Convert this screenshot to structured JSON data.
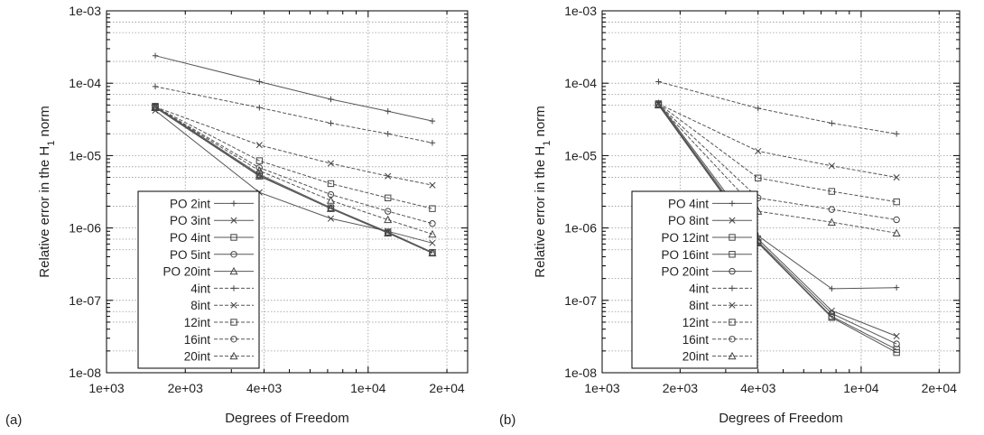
{
  "chart_data": [
    {
      "type": "line",
      "panel_label": "(a)",
      "xlabel": "Degrees of Freedom",
      "ylabel": "Relative error in the H",
      "ylabel_sub": "1",
      "ylabel_tail": " norm",
      "xscale": "log",
      "yscale": "log",
      "xlim": [
        1000,
        24000
      ],
      "ylim": [
        1e-08,
        0.001
      ],
      "xticks": [
        {
          "v": 1000,
          "label": "1e+03"
        },
        {
          "v": 2000,
          "label": "2e+03"
        },
        {
          "v": 4000,
          "label": "4e+03"
        },
        {
          "v": 10000,
          "label": "1e+04"
        },
        {
          "v": 20000,
          "label": "2e+04"
        }
      ],
      "yticks": [
        {
          "v": 1e-08,
          "label": "1e-08"
        },
        {
          "v": 1e-07,
          "label": "1e-07"
        },
        {
          "v": 1e-06,
          "label": "1e-06"
        },
        {
          "v": 1e-05,
          "label": "1e-05"
        },
        {
          "v": 0.0001,
          "label": "1e-04"
        },
        {
          "v": 0.001,
          "label": "1e-03"
        }
      ],
      "grid": true,
      "legend_position": "bottom-left",
      "series": [
        {
          "name": "PO 2int",
          "marker": "plus",
          "dash": "solid",
          "x": [
            1536,
            3840,
            7200,
            11900,
            17600
          ],
          "y": [
            0.00024,
            0.000105,
            6e-05,
            4.1e-05,
            3e-05
          ]
        },
        {
          "name": "PO 3int",
          "marker": "x",
          "dash": "solid",
          "x": [
            1536,
            3840,
            7200,
            11900,
            17600
          ],
          "y": [
            4.2e-05,
            3.1e-06,
            1.35e-06,
            9e-07,
            6.2e-07
          ]
        },
        {
          "name": "PO 4int",
          "marker": "square",
          "dash": "solid",
          "x": [
            1536,
            3840,
            7200,
            11900,
            17600
          ],
          "y": [
            4.8e-05,
            5.5e-06,
            1.9e-06,
            8.8e-07,
            4.6e-07
          ]
        },
        {
          "name": "PO 5int",
          "marker": "circle",
          "dash": "solid",
          "x": [
            1536,
            3840,
            7200,
            11900,
            17600
          ],
          "y": [
            4.7e-05,
            5.3e-06,
            1.85e-06,
            8.6e-07,
            4.5e-07
          ]
        },
        {
          "name": "PO 20int",
          "marker": "triangle",
          "dash": "solid",
          "x": [
            1536,
            3840,
            7200,
            11900,
            17600
          ],
          "y": [
            4.6e-05,
            5.2e-06,
            1.85e-06,
            8.5e-07,
            4.5e-07
          ]
        },
        {
          "name": "4int",
          "marker": "plus",
          "dash": "dashed",
          "x": [
            1536,
            3840,
            7200,
            11900,
            17600
          ],
          "y": [
            9e-05,
            4.6e-05,
            2.8e-05,
            2e-05,
            1.5e-05
          ]
        },
        {
          "name": "8int",
          "marker": "x",
          "dash": "dashed",
          "x": [
            1536,
            3840,
            7200,
            11900,
            17600
          ],
          "y": [
            4.7e-05,
            1.4e-05,
            7.8e-06,
            5.2e-06,
            3.9e-06
          ]
        },
        {
          "name": "12int",
          "marker": "square",
          "dash": "dashed",
          "x": [
            1536,
            3840,
            7200,
            11900,
            17600
          ],
          "y": [
            4.7e-05,
            8.5e-06,
            4.1e-06,
            2.6e-06,
            1.85e-06
          ]
        },
        {
          "name": "16int",
          "marker": "circle",
          "dash": "dashed",
          "x": [
            1536,
            3840,
            7200,
            11900,
            17600
          ],
          "y": [
            4.7e-05,
            6.8e-06,
            2.9e-06,
            1.7e-06,
            1.15e-06
          ]
        },
        {
          "name": "20int",
          "marker": "triangle",
          "dash": "dashed",
          "x": [
            1536,
            3840,
            7200,
            11900,
            17600
          ],
          "y": [
            4.7e-05,
            6.2e-06,
            2.4e-06,
            1.3e-06,
            8.2e-07
          ]
        }
      ]
    },
    {
      "type": "line",
      "panel_label": "(b)",
      "xlabel": "Degrees of Freedom",
      "ylabel": "Relative error in the H",
      "ylabel_sub": "1",
      "ylabel_tail": " norm",
      "xscale": "log",
      "yscale": "log",
      "xlim": [
        1000,
        24000
      ],
      "ylim": [
        1e-08,
        0.001
      ],
      "xticks": [
        {
          "v": 1000,
          "label": "1e+03"
        },
        {
          "v": 2000,
          "label": "2e+03"
        },
        {
          "v": 4000,
          "label": "4e+03"
        },
        {
          "v": 10000,
          "label": "1e+04"
        },
        {
          "v": 20000,
          "label": "2e+04"
        }
      ],
      "yticks": [
        {
          "v": 1e-08,
          "label": "1e-08"
        },
        {
          "v": 1e-07,
          "label": "1e-07"
        },
        {
          "v": 1e-06,
          "label": "1e-06"
        },
        {
          "v": 1e-05,
          "label": "1e-05"
        },
        {
          "v": 0.0001,
          "label": "1e-04"
        },
        {
          "v": 0.001,
          "label": "1e-03"
        }
      ],
      "grid": true,
      "legend_position": "bottom-left",
      "series": [
        {
          "name": "PO 4int",
          "marker": "plus",
          "dash": "solid",
          "x": [
            1650,
            4000,
            7700,
            13700
          ],
          "y": [
            5.4e-05,
            7.8e-07,
            1.45e-07,
            1.5e-07
          ]
        },
        {
          "name": "PO 8int",
          "marker": "x",
          "dash": "solid",
          "x": [
            1650,
            4000,
            7700,
            13700
          ],
          "y": [
            5.2e-05,
            7e-07,
            7.2e-08,
            3.2e-08
          ]
        },
        {
          "name": "PO 12int",
          "marker": "square",
          "dash": "solid",
          "x": [
            1650,
            4000,
            7700,
            13700
          ],
          "y": [
            5e-05,
            6.2e-07,
            5.8e-08,
            1.9e-08
          ]
        },
        {
          "name": "PO 16int",
          "marker": "square",
          "dash": "solid",
          "x": [
            1650,
            4000,
            7700,
            13700
          ],
          "y": [
            5e-05,
            6.3e-07,
            6e-08,
            2.1e-08
          ]
        },
        {
          "name": "PO 20int",
          "marker": "circle",
          "dash": "solid",
          "x": [
            1650,
            4000,
            7700,
            13700
          ],
          "y": [
            5.1e-05,
            6.5e-07,
            6.6e-08,
            2.5e-08
          ]
        },
        {
          "name": "4int",
          "marker": "plus",
          "dash": "dashed",
          "x": [
            1650,
            4000,
            7700,
            13700
          ],
          "y": [
            0.000105,
            4.5e-05,
            2.8e-05,
            2e-05
          ]
        },
        {
          "name": "8int",
          "marker": "x",
          "dash": "dashed",
          "x": [
            1650,
            4000,
            7700,
            13700
          ],
          "y": [
            5.2e-05,
            1.15e-05,
            7.2e-06,
            5e-06
          ]
        },
        {
          "name": "12int",
          "marker": "square",
          "dash": "dashed",
          "x": [
            1650,
            4000,
            7700,
            13700
          ],
          "y": [
            5.2e-05,
            4.9e-06,
            3.2e-06,
            2.3e-06
          ]
        },
        {
          "name": "16int",
          "marker": "circle",
          "dash": "dashed",
          "x": [
            1650,
            4000,
            7700,
            13700
          ],
          "y": [
            5.1e-05,
            2.6e-06,
            1.8e-06,
            1.3e-06
          ]
        },
        {
          "name": "20int",
          "marker": "triangle",
          "dash": "dashed",
          "x": [
            1650,
            4000,
            7700,
            13700
          ],
          "y": [
            5e-05,
            1.7e-06,
            1.2e-06,
            8.5e-07
          ]
        }
      ]
    }
  ]
}
